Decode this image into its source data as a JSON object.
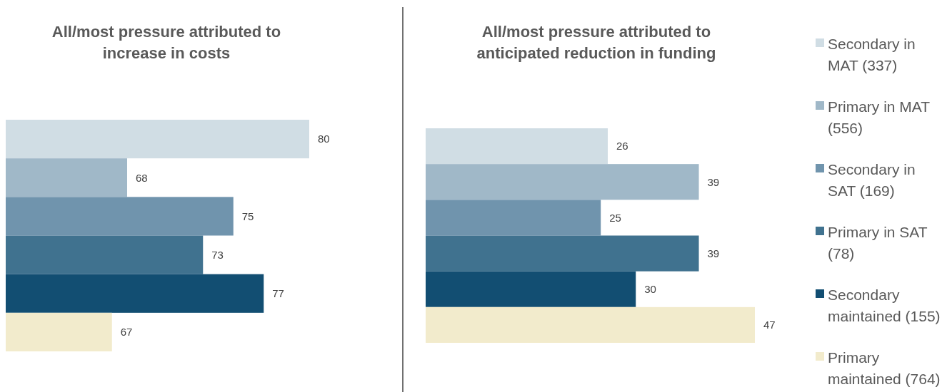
{
  "chart_data": [
    {
      "type": "bar",
      "orientation": "horizontal",
      "title": "All/most pressure attributed to increase in costs",
      "categories": [
        null
      ],
      "xlim": [
        60,
        80
      ],
      "data_labels": true,
      "legend": false,
      "series": [
        {
          "color": "#d0dde4",
          "values": [
            80
          ]
        },
        {
          "color": "#a0b8c8",
          "values": [
            68
          ]
        },
        {
          "color": "#7094ad",
          "values": [
            75
          ]
        },
        {
          "color": "#40728f",
          "values": [
            73
          ]
        },
        {
          "color": "#124e72",
          "values": [
            77
          ]
        },
        {
          "color": "#f2ebcc",
          "values": [
            67
          ]
        }
      ]
    },
    {
      "type": "bar",
      "orientation": "horizontal",
      "title": "All/most pressure attributed to anticipated reduction in funding",
      "categories": [
        null
      ],
      "xlim": [
        0,
        47
      ],
      "data_labels": true,
      "legend": "right",
      "series": [
        {
          "name": "Secondary in MAT (337)",
          "color": "#d0dde4",
          "values": [
            26
          ]
        },
        {
          "name": "Primary in MAT (556)",
          "color": "#a0b8c8",
          "values": [
            39
          ]
        },
        {
          "name": "Secondary in SAT (169)",
          "color": "#7094ad",
          "values": [
            25
          ]
        },
        {
          "name": "Primary in SAT (78)",
          "color": "#40728f",
          "values": [
            39
          ]
        },
        {
          "name": "Secondary maintained (155)",
          "color": "#124e72",
          "values": [
            30
          ]
        },
        {
          "name": "Primary maintained (764)",
          "color": "#f2ebcc",
          "values": [
            47
          ]
        }
      ]
    }
  ]
}
